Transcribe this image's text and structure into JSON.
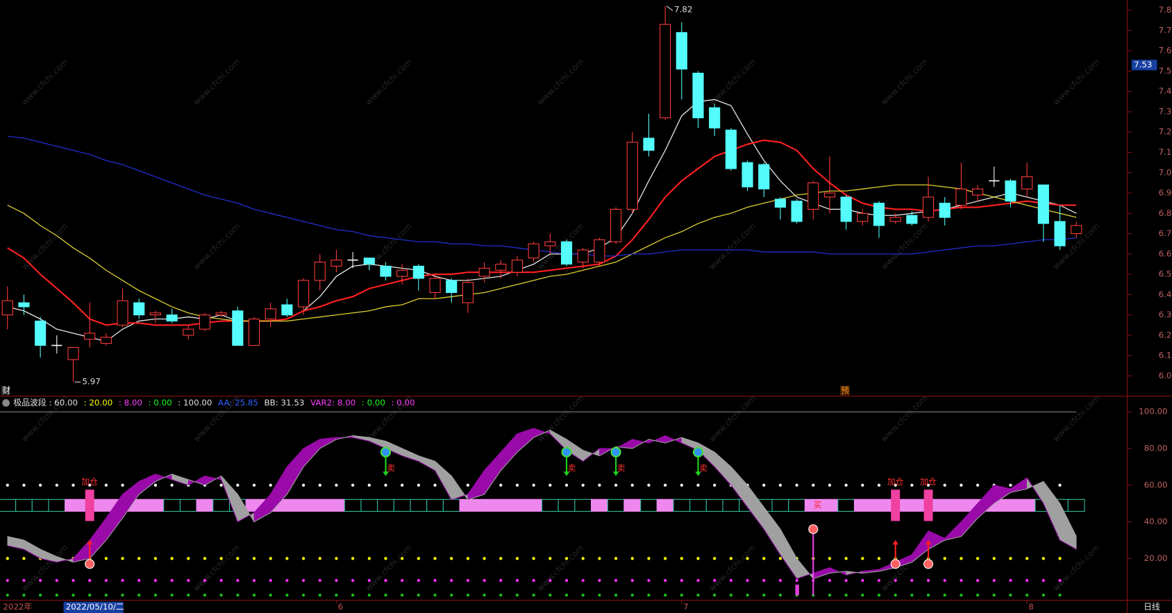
{
  "watermark": "www.cfchi.com",
  "ui": {
    "fin": "财",
    "forecast": "预",
    "year": "2022年",
    "period": "日线",
    "cursor_price": 7.53,
    "cursor_date": "2022/05/10/二"
  },
  "chart_data": [
    {
      "type": "candlestick",
      "categories": [
        null,
        null,
        null,
        null,
        null,
        null,
        null,
        null,
        null,
        null,
        null,
        null,
        null,
        null,
        null,
        null,
        null,
        null,
        null,
        null,
        "6",
        null,
        null,
        null,
        null,
        null,
        null,
        null,
        null,
        null,
        null,
        null,
        null,
        null,
        null,
        null,
        null,
        null,
        null,
        null,
        null,
        "7",
        null,
        null,
        null,
        null,
        null,
        null,
        null,
        null,
        null,
        null,
        null,
        null,
        null,
        null,
        null,
        null,
        null,
        null,
        null,
        null,
        "8",
        null,
        null,
        null
      ],
      "open": [
        6.3,
        6.36,
        6.27,
        6.15,
        6.08,
        6.18,
        6.16,
        6.25,
        6.36,
        6.3,
        6.3,
        6.2,
        6.23,
        6.3,
        6.32,
        6.15,
        6.28,
        6.35,
        6.34,
        6.47,
        6.54,
        6.57,
        6.58,
        6.54,
        6.49,
        6.54,
        6.41,
        6.47,
        6.36,
        6.49,
        6.52,
        6.51,
        6.58,
        6.64,
        6.66,
        6.56,
        6.56,
        6.66,
        6.82,
        7.17,
        7.27,
        7.69,
        7.49,
        7.32,
        7.21,
        7.05,
        7.04,
        6.87,
        6.86,
        6.82,
        6.88,
        6.88,
        6.76,
        6.85,
        6.76,
        6.79,
        6.78,
        6.85,
        6.84,
        6.89,
        6.96,
        6.96,
        6.92,
        6.94,
        6.76,
        6.7
      ],
      "high": [
        6.44,
        6.4,
        6.29,
        6.2,
        6.14,
        6.36,
        6.21,
        6.43,
        6.38,
        6.32,
        6.33,
        6.25,
        6.31,
        6.32,
        6.34,
        6.29,
        6.36,
        6.38,
        6.48,
        6.6,
        6.62,
        6.61,
        6.58,
        6.56,
        6.55,
        6.55,
        6.5,
        6.48,
        6.48,
        6.56,
        6.57,
        6.59,
        6.66,
        6.7,
        6.67,
        6.63,
        6.68,
        6.83,
        7.2,
        7.29,
        7.82,
        7.74,
        7.5,
        7.34,
        7.22,
        7.06,
        7.05,
        6.88,
        6.87,
        6.96,
        7.08,
        6.89,
        6.82,
        6.86,
        6.8,
        6.81,
        6.98,
        6.88,
        7.05,
        6.94,
        7.03,
        6.97,
        7.05,
        6.94,
        6.84,
        6.76
      ],
      "low": [
        6.23,
        6.3,
        6.09,
        6.11,
        5.97,
        6.14,
        6.15,
        6.24,
        6.28,
        6.26,
        6.26,
        6.18,
        6.22,
        6.29,
        6.15,
        6.15,
        6.24,
        6.29,
        6.3,
        6.42,
        6.51,
        6.53,
        6.52,
        6.47,
        6.45,
        6.42,
        6.38,
        6.36,
        6.31,
        6.46,
        6.48,
        6.49,
        6.56,
        6.6,
        6.54,
        6.53,
        6.54,
        6.65,
        6.8,
        7.08,
        7.26,
        7.36,
        7.22,
        7.18,
        7.01,
        6.91,
        6.88,
        6.77,
        6.75,
        6.77,
        6.8,
        6.72,
        6.74,
        6.68,
        6.75,
        6.74,
        6.76,
        6.74,
        6.82,
        6.86,
        6.93,
        6.83,
        6.88,
        6.66,
        6.62,
        6.68
      ],
      "close": [
        6.37,
        6.34,
        6.15,
        6.15,
        6.14,
        6.21,
        6.19,
        6.37,
        6.3,
        6.31,
        6.27,
        6.23,
        6.3,
        6.31,
        6.15,
        6.28,
        6.33,
        6.3,
        6.47,
        6.56,
        6.57,
        6.57,
        6.55,
        6.49,
        6.52,
        6.48,
        6.48,
        6.41,
        6.46,
        6.53,
        6.55,
        6.57,
        6.65,
        6.66,
        6.55,
        6.62,
        6.67,
        6.82,
        7.15,
        7.11,
        7.73,
        7.51,
        7.27,
        7.22,
        7.02,
        6.93,
        6.92,
        6.83,
        6.76,
        6.95,
        6.9,
        6.76,
        6.8,
        6.74,
        6.78,
        6.75,
        6.88,
        6.78,
        6.92,
        6.92,
        6.96,
        6.86,
        6.98,
        6.75,
        6.64,
        6.74
      ],
      "up_color": "#ff3c3c",
      "down_color": "#54fcfc",
      "doji_color": "#ffffff",
      "lines": [
        {
          "color": "#e8e8e8",
          "values": [
            6.34,
            6.32,
            6.28,
            6.23,
            6.21,
            6.19,
            6.17,
            6.23,
            6.27,
            6.28,
            6.28,
            6.29,
            6.28,
            6.3,
            6.27,
            6.27,
            6.27,
            6.28,
            6.32,
            6.39,
            6.49,
            6.54,
            6.55,
            6.54,
            6.53,
            6.52,
            6.49,
            6.47,
            6.47,
            6.48,
            6.49,
            6.52,
            6.55,
            6.6,
            6.6,
            6.6,
            6.63,
            6.68,
            6.8,
            6.96,
            7.11,
            7.28,
            7.35,
            7.36,
            7.33,
            7.19,
            7.06,
            6.96,
            6.88,
            6.85,
            6.82,
            6.82,
            6.8,
            6.79,
            6.79,
            6.8,
            6.81,
            6.82,
            6.84,
            6.86,
            6.88,
            6.9,
            6.88,
            6.86,
            6.84,
            6.8
          ]
        },
        {
          "color": "#ff2020",
          "values": [
            6.63,
            6.58,
            6.5,
            6.43,
            6.36,
            6.28,
            6.25,
            6.26,
            6.26,
            6.25,
            6.25,
            6.25,
            6.26,
            6.27,
            6.27,
            6.27,
            6.27,
            6.28,
            6.32,
            6.34,
            6.37,
            6.39,
            6.43,
            6.45,
            6.47,
            6.49,
            6.5,
            6.5,
            6.51,
            6.51,
            6.51,
            6.51,
            6.51,
            6.52,
            6.53,
            6.54,
            6.55,
            6.59,
            6.67,
            6.77,
            6.88,
            6.96,
            7.02,
            7.08,
            7.11,
            7.14,
            7.16,
            7.15,
            7.11,
            7.02,
            6.95,
            6.89,
            6.85,
            6.83,
            6.82,
            6.82,
            6.81,
            6.82,
            6.83,
            6.83,
            6.84,
            6.85,
            6.86,
            6.85,
            6.84,
            6.84
          ]
        },
        {
          "color": "#e0d030",
          "values": [
            6.84,
            6.8,
            6.74,
            6.69,
            6.63,
            6.58,
            6.52,
            6.47,
            6.42,
            6.38,
            6.34,
            6.31,
            6.29,
            6.28,
            6.27,
            6.27,
            6.27,
            6.27,
            6.28,
            6.29,
            6.3,
            6.31,
            6.32,
            6.34,
            6.35,
            6.38,
            6.38,
            6.39,
            6.4,
            6.41,
            6.43,
            6.45,
            6.47,
            6.49,
            6.5,
            6.52,
            6.54,
            6.56,
            6.6,
            6.64,
            6.68,
            6.71,
            6.75,
            6.78,
            6.8,
            6.83,
            6.85,
            6.87,
            6.89,
            6.9,
            6.91,
            6.91,
            6.92,
            6.93,
            6.94,
            6.94,
            6.94,
            6.93,
            6.92,
            6.9,
            6.88,
            6.86,
            6.84,
            6.82,
            6.8,
            6.78
          ]
        },
        {
          "color": "#2030d0",
          "values": [
            7.18,
            7.17,
            7.15,
            7.13,
            7.11,
            7.09,
            7.06,
            7.04,
            7.01,
            6.98,
            6.95,
            6.92,
            6.89,
            6.87,
            6.85,
            6.82,
            6.8,
            6.78,
            6.76,
            6.74,
            6.72,
            6.71,
            6.69,
            6.68,
            6.67,
            6.66,
            6.66,
            6.65,
            6.65,
            6.64,
            6.64,
            6.63,
            6.62,
            6.61,
            6.6,
            6.6,
            6.59,
            6.59,
            6.6,
            6.6,
            6.61,
            6.62,
            6.62,
            6.62,
            6.62,
            6.62,
            6.61,
            6.61,
            6.61,
            6.61,
            6.6,
            6.6,
            6.6,
            6.6,
            6.6,
            6.6,
            6.61,
            6.62,
            6.63,
            6.64,
            6.64,
            6.65,
            6.66,
            6.67,
            6.67,
            6.68
          ]
        }
      ],
      "ylim": [
        5.9,
        7.85
      ],
      "yticks": [
        {
          "value": 6.0,
          "label": "6.00"
        },
        {
          "value": 6.1,
          "label": "6.10"
        },
        {
          "value": 6.2,
          "label": "6.20"
        },
        {
          "value": 6.3,
          "label": "6.30"
        },
        {
          "value": 6.4,
          "label": "6.40"
        },
        {
          "value": 6.5,
          "label": "6.50"
        },
        {
          "value": 6.6,
          "label": "6.60"
        },
        {
          "value": 6.7,
          "label": "6.70"
        },
        {
          "value": 6.8,
          "label": "6.80"
        },
        {
          "value": 6.9,
          "label": "6.90"
        },
        {
          "value": 7.0,
          "label": "7.00"
        },
        {
          "value": 7.1,
          "label": "7.10"
        },
        {
          "value": 7.2,
          "label": "7.20"
        },
        {
          "value": 7.3,
          "label": "7.30"
        },
        {
          "value": 7.4,
          "label": "7.40"
        },
        {
          "value": 7.5,
          "label": "7.50"
        },
        {
          "value": 7.6,
          "label": "7.60"
        },
        {
          "value": 7.7,
          "label": "7.70"
        },
        {
          "value": 7.8,
          "label": "7.80"
        }
      ]
    },
    {
      "type": "indicator",
      "header": [
        {
          "text": "极品波段 : 60.00",
          "color": "#e0e0e0"
        },
        {
          "text": ": 20.00",
          "color": "#ffff00"
        },
        {
          "text": ": 8.00",
          "color": "#ff40ff"
        },
        {
          "text": ": 0.00",
          "color": "#20ff20"
        },
        {
          "text": ": 100.00",
          "color": "#e0e0e0"
        },
        {
          "text": "AA: 25.85",
          "color": "#3060ff"
        },
        {
          "text": "BB: 31.53",
          "color": "#e0e0e0"
        },
        {
          "text": "VAR2: 8.00",
          "color": "#ff40ff"
        },
        {
          "text": ": 0.00",
          "color": "#20ff20"
        },
        {
          "text": ": 0.00",
          "color": "#ff40ff"
        }
      ],
      "ylim": [
        -2,
        102
      ],
      "yticks": [
        {
          "value": 20,
          "label": "20.00"
        },
        {
          "value": 40,
          "label": "40.00"
        },
        {
          "value": 60,
          "label": "60.00"
        },
        {
          "value": 80,
          "label": "80.00"
        },
        {
          "value": 100,
          "label": "100.00"
        }
      ],
      "series": [
        {
          "color": "#990aa8",
          "values": [
            27,
            25,
            20,
            18,
            20,
            30,
            42,
            55,
            62,
            66,
            63,
            60,
            65,
            63,
            40,
            45,
            55,
            70,
            80,
            85,
            86,
            86,
            84,
            80,
            76,
            73,
            68,
            52,
            55,
            68,
            78,
            88,
            91,
            88,
            79,
            73,
            80,
            80,
            85,
            83,
            87,
            83,
            79,
            70,
            60,
            48,
            36,
            22,
            9,
            12,
            15,
            11,
            13,
            14,
            18,
            22,
            35,
            31,
            40,
            50,
            60,
            58,
            64,
            50,
            30,
            25
          ]
        },
        {
          "color": "#a0a0a0",
          "values": [
            32,
            30,
            25,
            21,
            18,
            20,
            30,
            42,
            55,
            62,
            66,
            63,
            60,
            65,
            55,
            40,
            45,
            55,
            70,
            80,
            85,
            87,
            86,
            84,
            80,
            76,
            73,
            65,
            52,
            55,
            68,
            78,
            86,
            90,
            85,
            79,
            76,
            81,
            80,
            85,
            83,
            86,
            83,
            78,
            70,
            60,
            48,
            36,
            20,
            9,
            12,
            13,
            12,
            13,
            15,
            18,
            25,
            30,
            32,
            42,
            50,
            56,
            58,
            62,
            50,
            32
          ]
        }
      ],
      "levels": [
        {
          "value": 100,
          "color": "#909090",
          "style": "solid"
        },
        {
          "value": 60,
          "color": "#ffffff",
          "style": "dots"
        },
        {
          "value": 20,
          "color": "#ffff00",
          "style": "dots"
        },
        {
          "value": 8,
          "color": "#ff30ff",
          "style": "dots"
        },
        {
          "value": 0,
          "color": "#20c020",
          "style": "dots"
        }
      ],
      "signals": [
        {
          "index": 5,
          "label": "加仓",
          "kind": "add",
          "value": 17
        },
        {
          "index": 23,
          "label": "卖",
          "kind": "sell",
          "value": 78
        },
        {
          "index": 34,
          "label": "卖",
          "kind": "sell",
          "value": 78
        },
        {
          "index": 37,
          "label": "卖",
          "kind": "sell",
          "value": 78
        },
        {
          "index": 42,
          "label": "卖",
          "kind": "sell",
          "value": 78
        },
        {
          "index": 49,
          "label": "买",
          "kind": "buy",
          "value": 36
        },
        {
          "index": 54,
          "label": "加仓",
          "kind": "add",
          "value": 17
        },
        {
          "index": 56,
          "label": "加仓",
          "kind": "add",
          "value": 17
        }
      ]
    }
  ]
}
